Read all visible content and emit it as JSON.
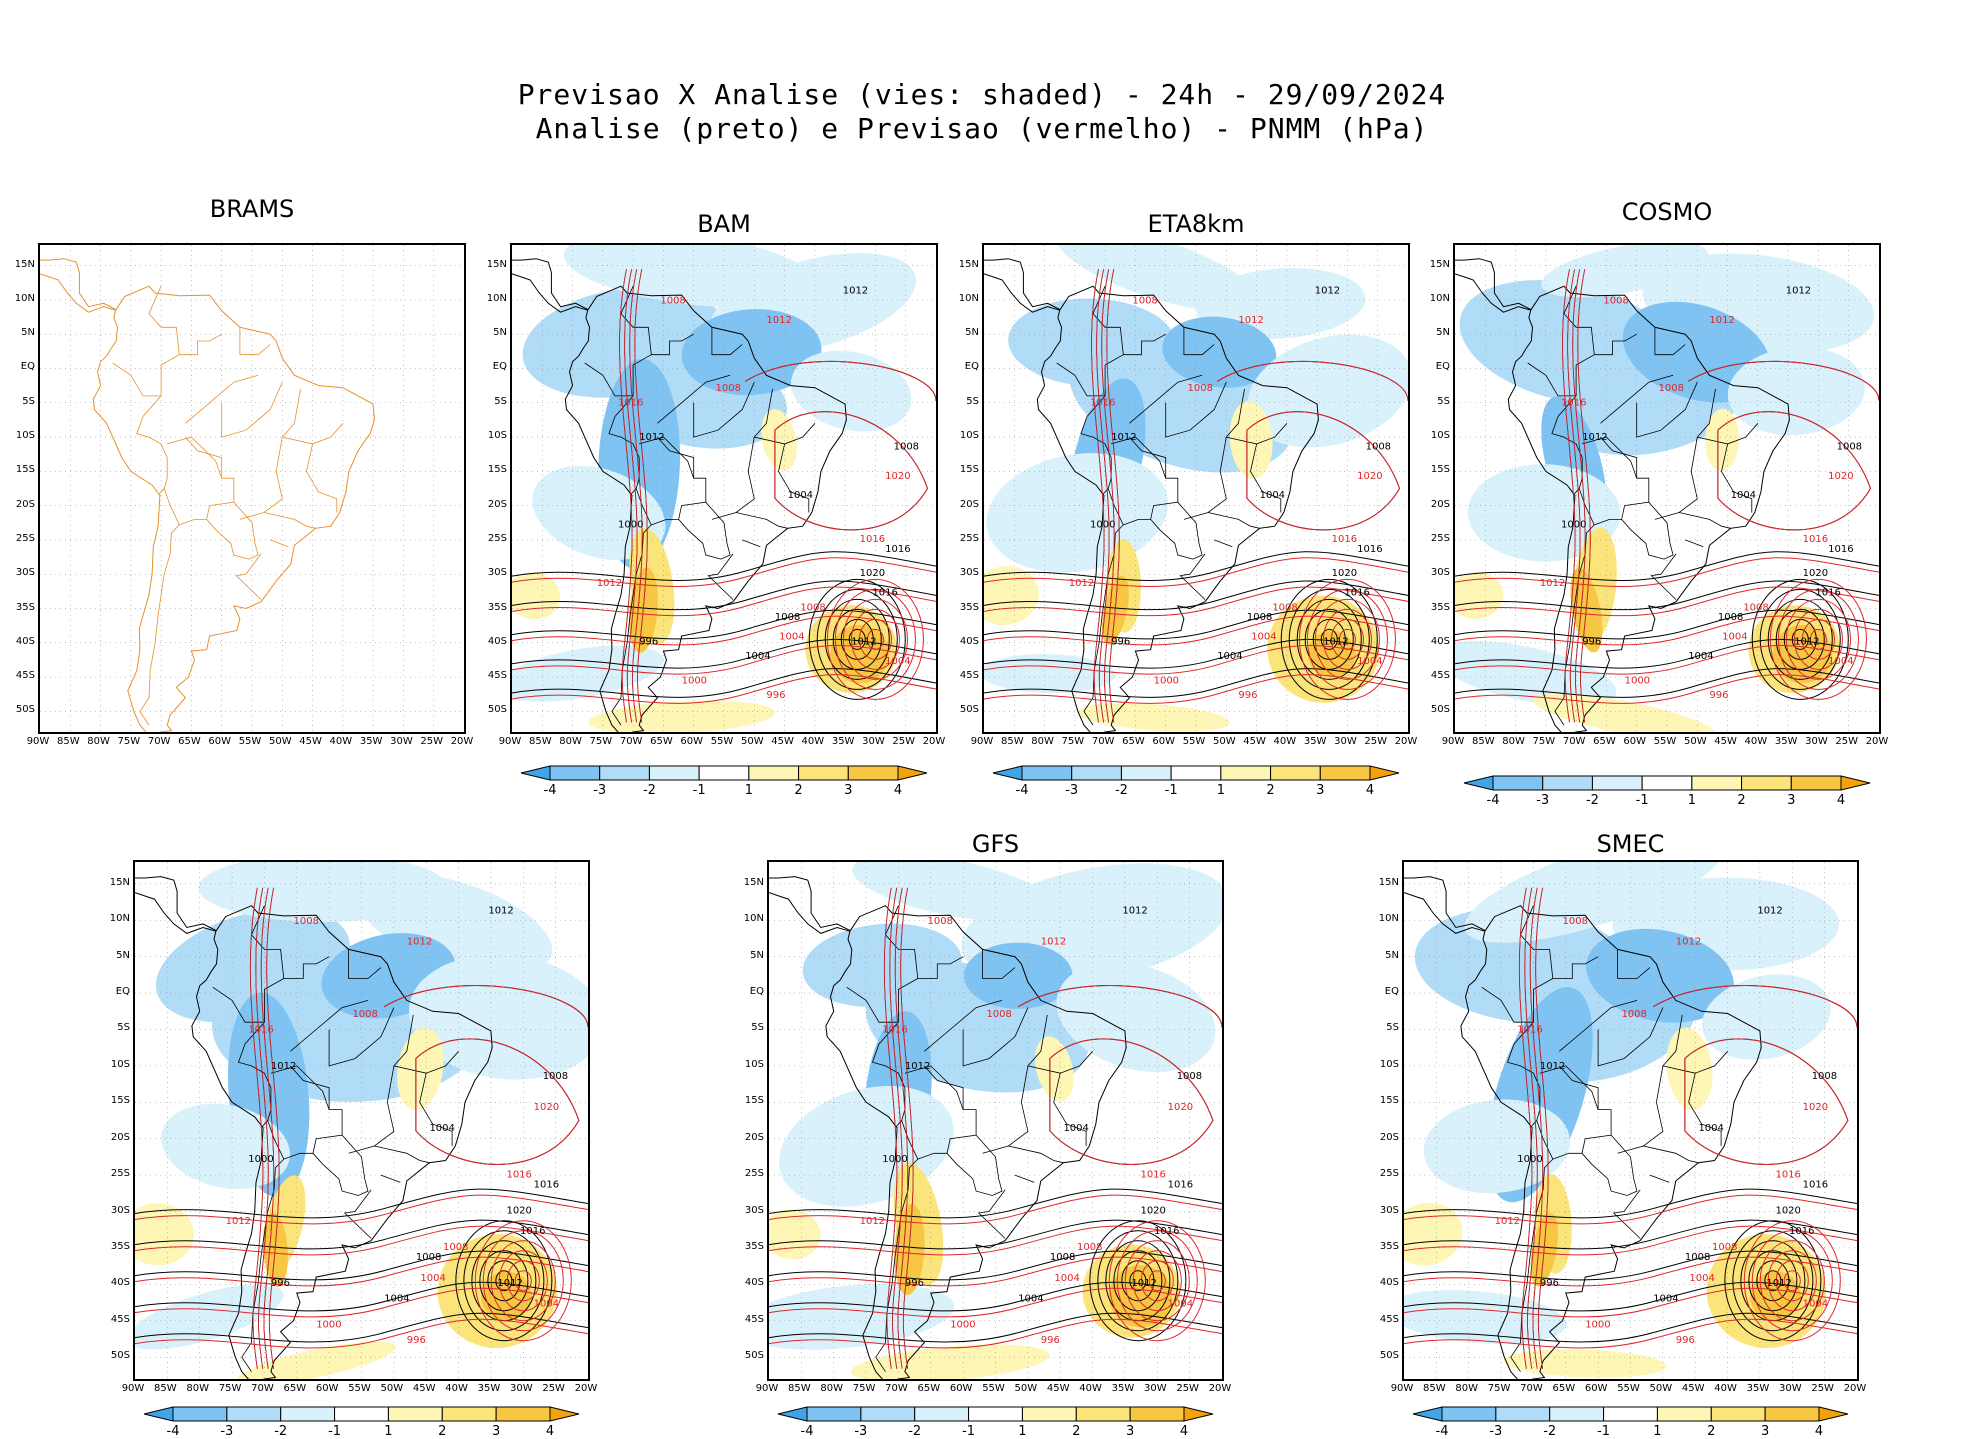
{
  "title_line1": "Previsao X Analise (vies: shaded) - 24h - 29/09/2024",
  "title_line2": "Analise (preto) e Previsao (vermelho) - PNMM (hPa)",
  "lat_labels": [
    "15N",
    "10N",
    "5N",
    "EQ",
    "5S",
    "10S",
    "15S",
    "20S",
    "25S",
    "30S",
    "35S",
    "40S",
    "45S",
    "50S"
  ],
  "lon_labels": [
    "90W",
    "85W",
    "80W",
    "75W",
    "70W",
    "65W",
    "60W",
    "55W",
    "50W",
    "45W",
    "40W",
    "35W",
    "30W",
    "25W",
    "20W"
  ],
  "colorbar_labels": [
    "-4",
    "-3",
    "-2",
    "-1",
    "1",
    "2",
    "3",
    "4"
  ],
  "colors": {
    "neg4": "#3fa5e8",
    "neg3": "#7ec3f2",
    "neg2": "#b0dcf7",
    "neg1": "#d9f1fb",
    "pos1": "#fdf6b5",
    "pos2": "#fbe479",
    "pos3": "#f7c744",
    "pos4": "#f3a20a",
    "analysis": "#000000",
    "forecast": "#e0262a",
    "coast_brams": "#e8902c"
  },
  "panels": [
    {
      "id": "brams",
      "name": "BRAMS",
      "has_data": false
    },
    {
      "id": "bam",
      "name": "BAM",
      "has_data": true
    },
    {
      "id": "eta",
      "name": "ETA8km",
      "has_data": true
    },
    {
      "id": "cosmo",
      "name": "COSMO",
      "has_data": true
    },
    {
      "id": "p5",
      "name": "",
      "has_data": true
    },
    {
      "id": "gfs",
      "name": "GFS",
      "has_data": true
    },
    {
      "id": "smec",
      "name": "SMEC",
      "has_data": true
    }
  ],
  "contour_labels": {
    "analysis": [
      "1012",
      "1016",
      "1020",
      "1016",
      "1012",
      "1008",
      "1004",
      "996",
      "1000",
      "1004",
      "1008",
      "1012"
    ],
    "forecast": [
      "1012",
      "1008",
      "1016",
      "1020",
      "1016",
      "1012",
      "1008",
      "1004",
      "1000",
      "996",
      "1004",
      "1008"
    ]
  }
}
